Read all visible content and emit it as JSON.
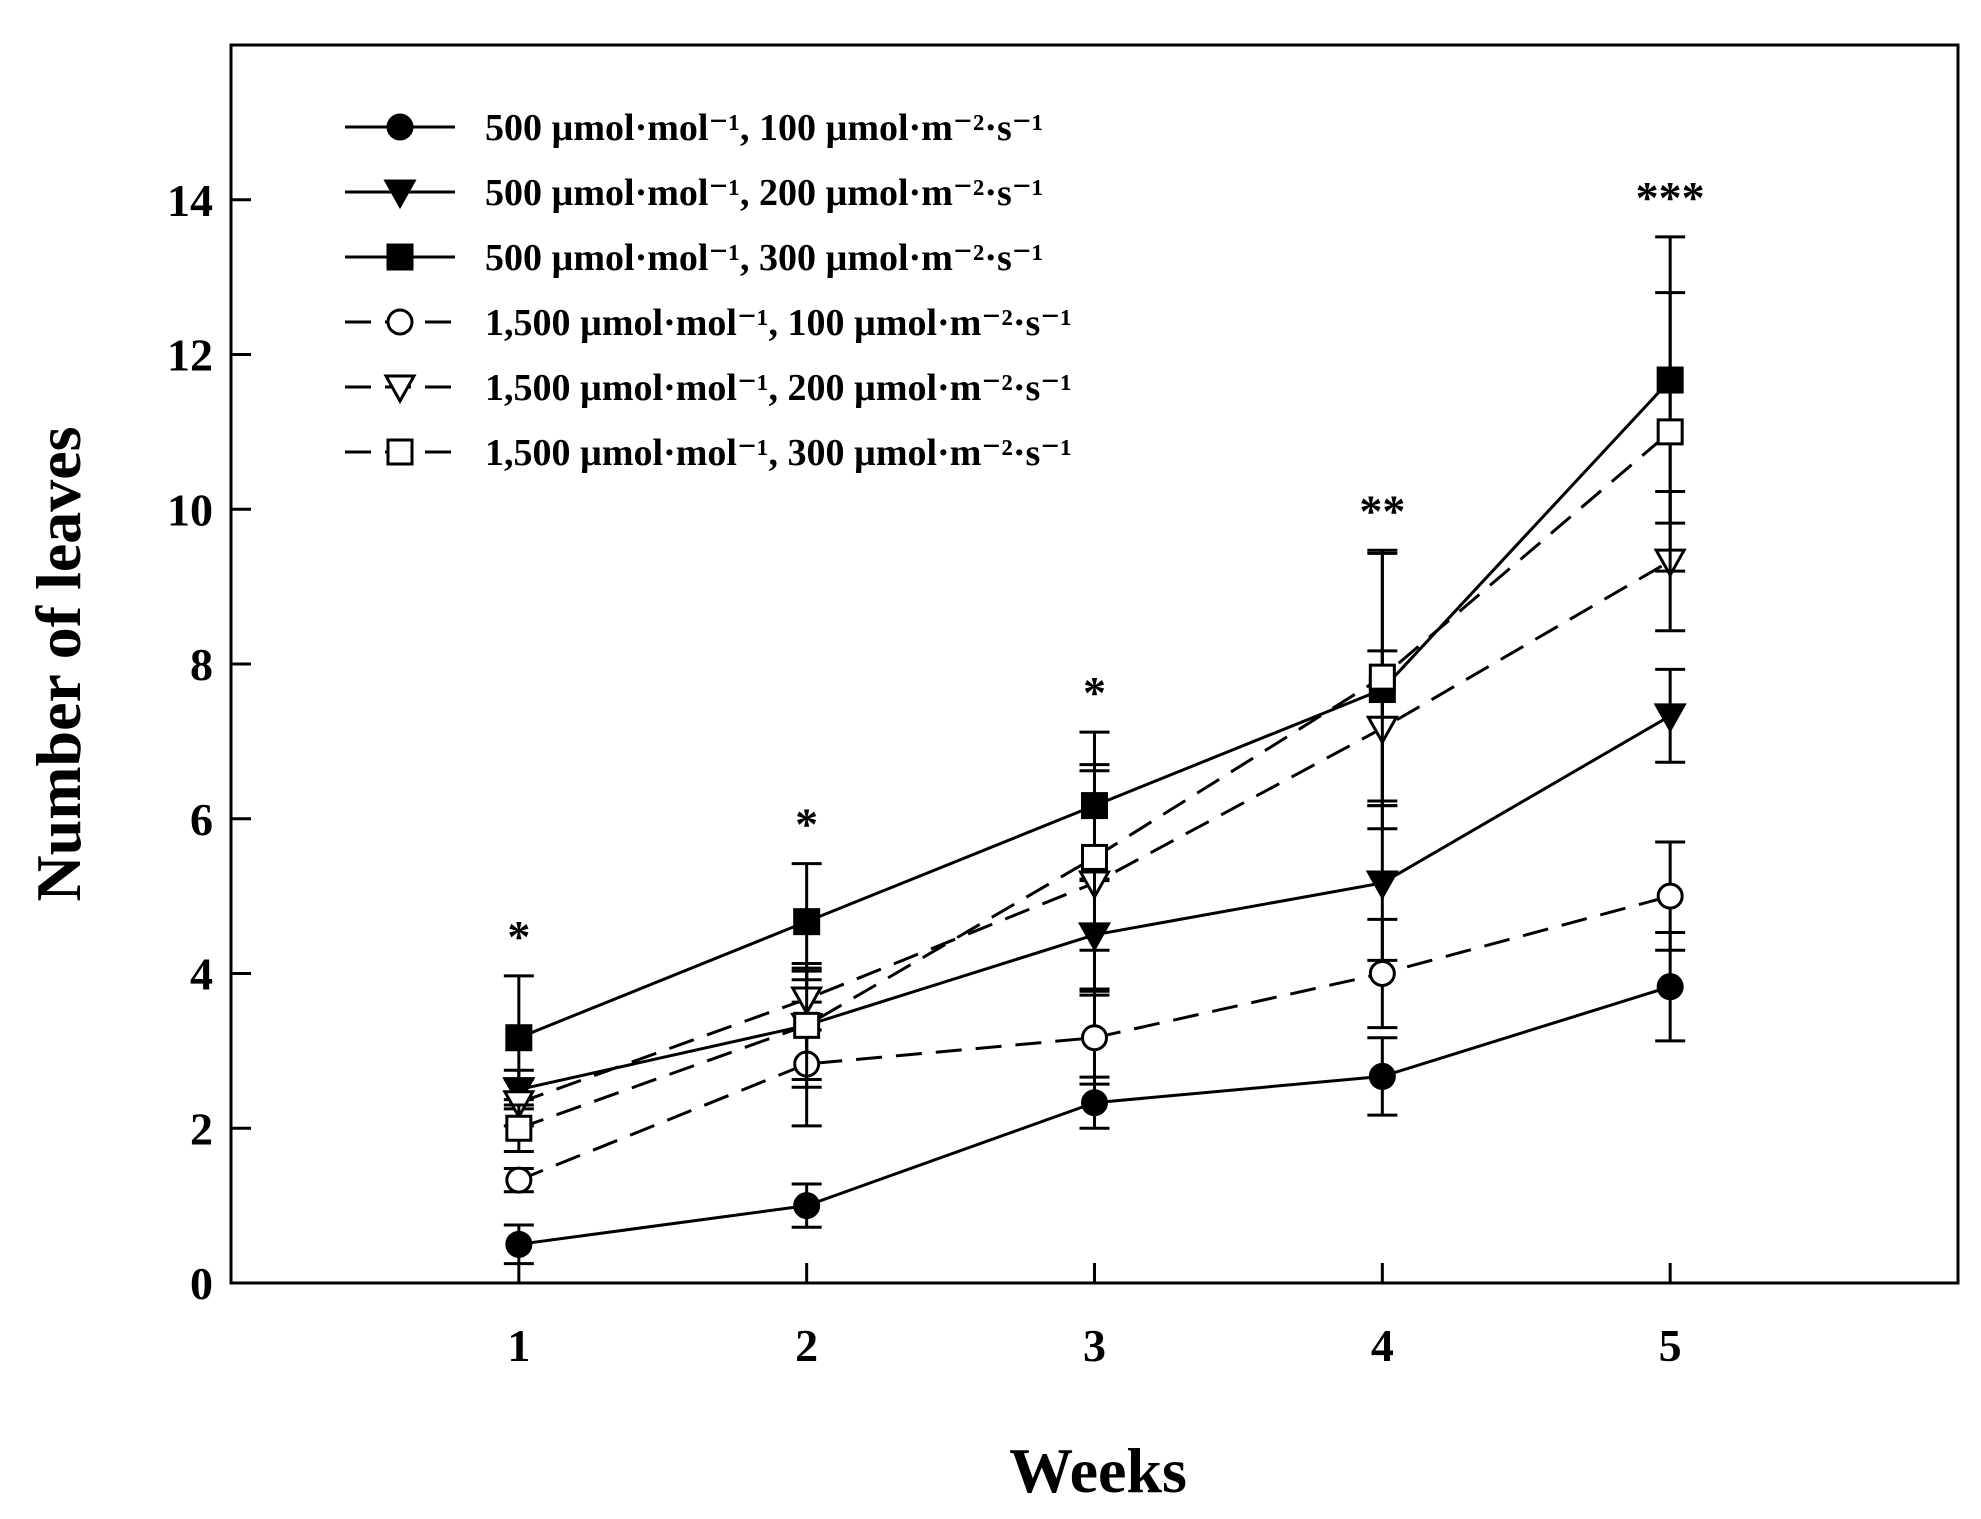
{
  "chart_data": {
    "type": "line",
    "xlabel": "Weeks",
    "ylabel": "Number of leaves",
    "x": [
      1,
      2,
      3,
      4,
      5
    ],
    "xticks": [
      "1",
      "2",
      "3",
      "4",
      "5"
    ],
    "xlim": [
      0,
      6
    ],
    "ylim": [
      0,
      16
    ],
    "yticks": [
      "0",
      "2",
      "4",
      "6",
      "8",
      "10",
      "12",
      "14"
    ],
    "grid": false,
    "legend_position": "top-left",
    "significance": [
      "*",
      "*",
      "*",
      "**",
      "***"
    ],
    "series": [
      {
        "name": "500 µmol·mol⁻¹, 100 µmol·m⁻²·s⁻¹",
        "marker": "circle",
        "filled": true,
        "dashed": false,
        "values": [
          0.5,
          1.0,
          2.33,
          2.67,
          3.83
        ],
        "errors": [
          0.25,
          0.28,
          0.33,
          0.5,
          0.7
        ]
      },
      {
        "name": "500 µmol·mol⁻¹, 200 µmol·m⁻²·s⁻¹",
        "marker": "triangle-down",
        "filled": true,
        "dashed": false,
        "values": [
          2.5,
          3.33,
          4.5,
          5.17,
          7.33
        ],
        "errors": [
          0.25,
          0.7,
          0.7,
          1.0,
          0.6
        ]
      },
      {
        "name": "500 µmol·mol⁻¹, 300 µmol·m⁻²·s⁻¹",
        "marker": "square",
        "filled": true,
        "dashed": false,
        "values": [
          3.17,
          4.67,
          6.17,
          7.67,
          11.67
        ],
        "errors": [
          0.8,
          0.75,
          0.95,
          1.8,
          1.85
        ]
      },
      {
        "name": "1,500 µmol·mol⁻¹, 100 µmol·m⁻²·s⁻¹",
        "marker": "circle",
        "filled": false,
        "dashed": true,
        "values": [
          1.33,
          2.83,
          3.17,
          4.0,
          5.0
        ],
        "errors": [
          0.15,
          0.8,
          0.6,
          0.7,
          0.7
        ]
      },
      {
        "name": "1,500 µmol·mol⁻¹, 200 µmol·m⁻²·s⁻¹",
        "marker": "triangle-down",
        "filled": false,
        "dashed": true,
        "values": [
          2.33,
          3.67,
          5.17,
          7.17,
          9.33
        ],
        "errors": [
          0.3,
          0.4,
          1.45,
          1.0,
          0.9
        ]
      },
      {
        "name": "1,500 µmol·mol⁻¹, 300 µmol·m⁻²·s⁻¹",
        "marker": "square",
        "filled": false,
        "dashed": true,
        "values": [
          2.0,
          3.33,
          5.5,
          7.83,
          11.0
        ],
        "errors": [
          0.3,
          0.8,
          1.2,
          1.6,
          1.8
        ]
      }
    ]
  }
}
